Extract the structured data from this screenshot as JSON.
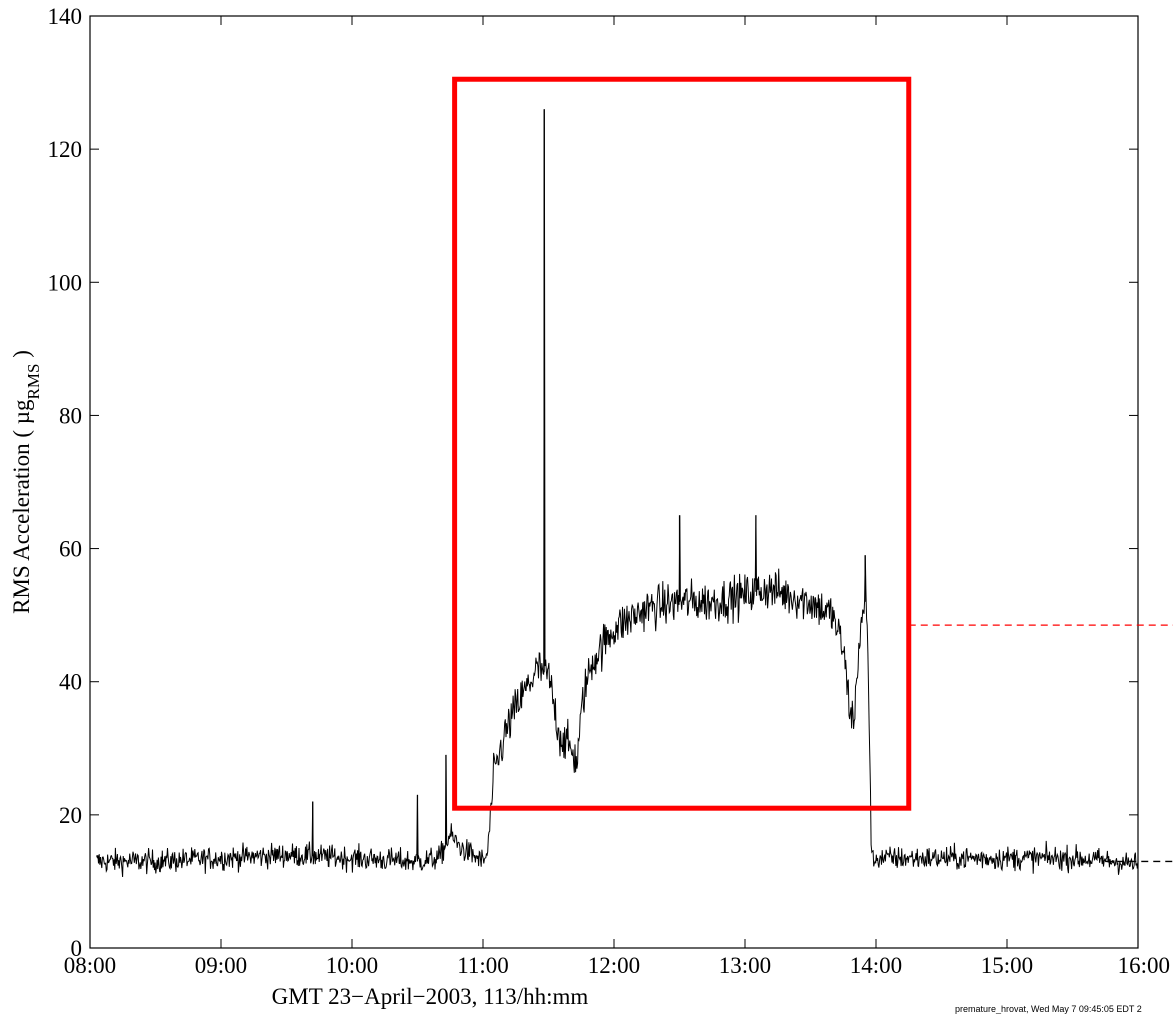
{
  "chart_data": {
    "type": "line",
    "title": "",
    "xlabel": "GMT 23−April−2003, 113/hh:mm",
    "ylabel_main": "RMS Acceleration ( µg",
    "ylabel_sub": "RMS",
    "ylabel_end": " )",
    "xlim": [
      "08:00",
      "16:00"
    ],
    "ylim": [
      0,
      140
    ],
    "grid": false,
    "x_ticks": [
      "08:00",
      "09:00",
      "10:00",
      "11:00",
      "12:00",
      "13:00",
      "14:00",
      "15:00",
      "16:00"
    ],
    "y_ticks": [
      0,
      20,
      40,
      60,
      80,
      100,
      120,
      140
    ],
    "series": [
      {
        "color": "#000000",
        "x": [
          "08:03",
          "08:30",
          "09:00",
          "09:30",
          "10:00",
          "10:30",
          "10:40",
          "10:45",
          "10:50",
          "11:00",
          "11:02",
          "11:05",
          "11:10",
          "11:15",
          "11:20",
          "11:25",
          "11:30",
          "11:35",
          "11:40",
          "11:43",
          "11:46",
          "11:50",
          "12:00",
          "12:15",
          "12:30",
          "12:45",
          "13:00",
          "13:10",
          "13:20",
          "13:30",
          "13:40",
          "13:45",
          "13:48",
          "13:50",
          "13:52",
          "13:55",
          "13:56",
          "13:58",
          "14:00",
          "14:30",
          "15:00",
          "15:30",
          "15:50",
          "16:00"
        ],
        "y": [
          13,
          13,
          13.5,
          14,
          13.5,
          13,
          13.5,
          17,
          15,
          13,
          14,
          26,
          32,
          36,
          39,
          42,
          41,
          32,
          30,
          28,
          38,
          43,
          48,
          51,
          52,
          52,
          53,
          54,
          53,
          52,
          50,
          45,
          36,
          34,
          45,
          52,
          50,
          13,
          13.5,
          13.5,
          13.5,
          13.5,
          13,
          12.5
        ],
        "spikes": [
          {
            "x": "09:42",
            "y": 22
          },
          {
            "x": "10:30",
            "y": 23
          },
          {
            "x": "10:43",
            "y": 29
          },
          {
            "x": "11:28",
            "y": 126
          },
          {
            "x": "12:30",
            "y": 65
          },
          {
            "x": "13:05",
            "y": 65
          },
          {
            "x": "13:55",
            "y": 59
          }
        ]
      }
    ],
    "annotations": {
      "highlight_box": {
        "color": "#ff0000",
        "x0": "10:47",
        "x1": "14:15",
        "y0": 21,
        "y1": 130.5
      },
      "ref_lines": [
        {
          "color": "#ff0000",
          "style": "dashed",
          "y": 48.5,
          "x_start": "14:15"
        },
        {
          "color": "#000000",
          "style": "dashed",
          "y": 13,
          "x_start": "15:45"
        }
      ]
    },
    "footer_stamp": "premature_hrovat, Wed May  7 09:45:05 EDT 2"
  }
}
